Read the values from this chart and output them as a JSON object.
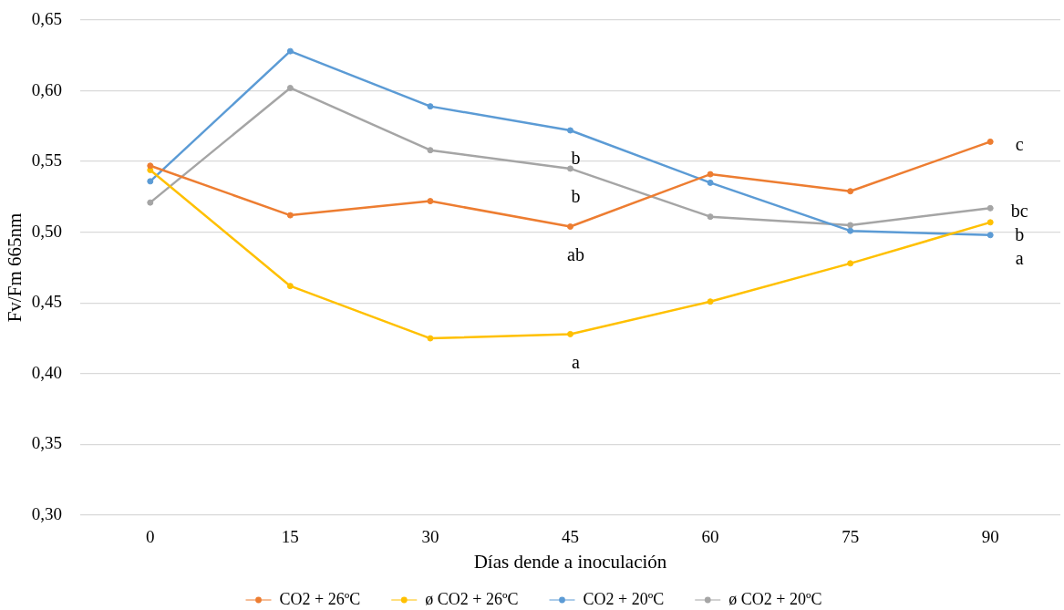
{
  "chart_data": {
    "type": "line",
    "xlabel": "Días dende a inoculación",
    "ylabel": "Fv/Fm 665nm",
    "categories": [
      "0",
      "15",
      "30",
      "45",
      "60",
      "75",
      "90"
    ],
    "series": [
      {
        "name": "CO2 + 26ºC",
        "color": "#ed7d31",
        "values": [
          0.547,
          0.512,
          0.522,
          0.504,
          0.541,
          0.529,
          0.564
        ]
      },
      {
        "name": "ø CO2 + 26ºC",
        "color": "#ffc000",
        "values": [
          0.544,
          0.462,
          0.425,
          0.428,
          0.451,
          0.478,
          0.507
        ]
      },
      {
        "name": "CO2 + 20ºC",
        "color": "#5b9bd5",
        "values": [
          0.536,
          0.628,
          0.589,
          0.572,
          0.535,
          0.501,
          0.498
        ]
      },
      {
        "name": "ø CO2 + 20ºC",
        "color": "#a5a5a5",
        "values": [
          0.521,
          0.602,
          0.558,
          0.545,
          0.511,
          0.505,
          0.517
        ]
      }
    ],
    "ylim": [
      0.3,
      0.65
    ],
    "yticks": [
      {
        "value": 0.3,
        "label": "0,30"
      },
      {
        "value": 0.35,
        "label": "0,35"
      },
      {
        "value": 0.4,
        "label": "0,40"
      },
      {
        "value": 0.45,
        "label": "0,45"
      },
      {
        "value": 0.5,
        "label": "0,50"
      },
      {
        "value": 0.55,
        "label": "0,55"
      },
      {
        "value": 0.6,
        "label": "0,60"
      },
      {
        "value": 0.65,
        "label": "0,65"
      }
    ],
    "grid": "y",
    "legend": "bottom",
    "marker": "circle",
    "line_style": "solid",
    "annotations": [
      {
        "text": "b",
        "x": "45",
        "y": 0.572
      },
      {
        "text": "b",
        "x": "45",
        "y": 0.545
      },
      {
        "text": "ab",
        "x": "45",
        "y": 0.504
      },
      {
        "text": "a",
        "x": "45",
        "y": 0.428
      },
      {
        "text": "c",
        "x": "90",
        "y": 0.564
      },
      {
        "text": "bc",
        "x": "90",
        "y": 0.517
      },
      {
        "text": "b",
        "x": "90",
        "y": 0.507
      },
      {
        "text": "a",
        "x": "90",
        "y": 0.498
      }
    ]
  }
}
